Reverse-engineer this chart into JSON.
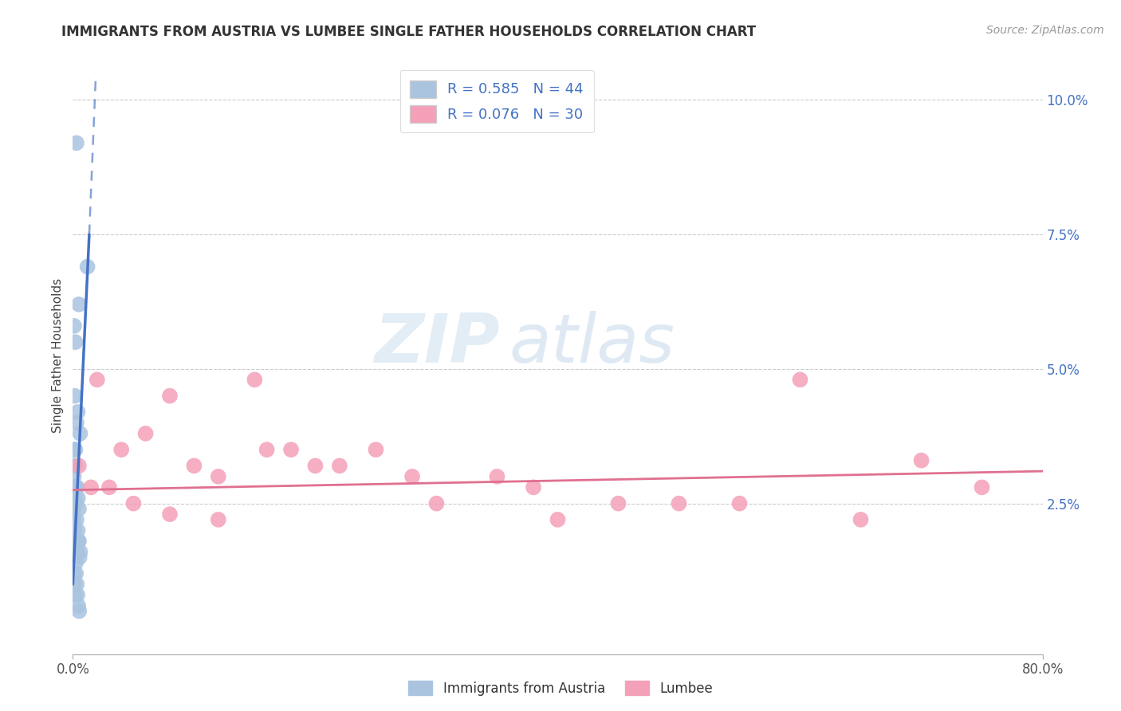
{
  "title": "IMMIGRANTS FROM AUSTRIA VS LUMBEE SINGLE FATHER HOUSEHOLDS CORRELATION CHART",
  "source": "Source: ZipAtlas.com",
  "ylabel": "Single Father Households",
  "xmin": 0.0,
  "xmax": 80.0,
  "ymin": -0.3,
  "ymax": 10.8,
  "yticks": [
    2.5,
    5.0,
    7.5,
    10.0
  ],
  "ytick_labels": [
    "2.5%",
    "5.0%",
    "7.5%",
    "10.0%"
  ],
  "xtick_left": "0.0%",
  "xtick_right": "80.0%",
  "blue_R": 0.585,
  "blue_N": 44,
  "pink_R": 0.076,
  "pink_N": 30,
  "blue_color": "#aac4e0",
  "blue_line_color": "#4472c4",
  "pink_color": "#f4a0b8",
  "pink_line_color": "#e07090",
  "grid_color": "#cccccc",
  "background_color": "#ffffff",
  "blue_scatter_x": [
    0.3,
    1.2,
    0.5,
    0.2,
    0.1,
    0.4,
    0.6,
    0.3,
    0.15,
    0.2,
    0.1,
    0.05,
    0.08,
    0.12,
    0.18,
    0.22,
    0.28,
    0.35,
    0.42,
    0.5,
    0.15,
    0.1,
    0.08,
    0.06,
    0.04,
    0.03,
    0.12,
    0.2,
    0.3,
    0.4,
    0.5,
    0.6,
    0.25,
    0.35,
    0.45,
    0.55,
    0.08,
    0.12,
    0.18,
    0.25,
    0.32,
    0.38,
    0.44,
    0.52
  ],
  "blue_scatter_y": [
    9.2,
    6.9,
    6.2,
    5.5,
    5.8,
    4.2,
    3.8,
    4.0,
    4.5,
    3.5,
    3.2,
    2.8,
    3.0,
    3.5,
    3.2,
    2.8,
    2.5,
    2.8,
    2.6,
    2.4,
    2.8,
    2.6,
    2.4,
    2.2,
    2.0,
    1.8,
    2.0,
    1.8,
    2.2,
    2.0,
    1.8,
    1.6,
    1.4,
    1.6,
    1.8,
    1.5,
    1.2,
    1.0,
    0.8,
    1.2,
    1.0,
    0.8,
    0.6,
    0.5
  ],
  "pink_scatter_x": [
    0.5,
    2.0,
    4.0,
    6.0,
    8.0,
    10.0,
    12.0,
    15.0,
    18.0,
    20.0,
    25.0,
    30.0,
    35.0,
    40.0,
    50.0,
    60.0,
    70.0,
    1.5,
    3.0,
    5.0,
    8.0,
    12.0,
    16.0,
    22.0,
    28.0,
    38.0,
    55.0,
    65.0,
    75.0,
    45.0
  ],
  "pink_scatter_y": [
    3.2,
    4.8,
    3.5,
    3.8,
    4.5,
    3.2,
    3.0,
    4.8,
    3.5,
    3.2,
    3.5,
    2.5,
    3.0,
    2.2,
    2.5,
    4.8,
    3.3,
    2.8,
    2.8,
    2.5,
    2.3,
    2.2,
    3.5,
    3.2,
    3.0,
    2.8,
    2.5,
    2.2,
    2.8,
    2.5
  ],
  "blue_line_x0": 0.0,
  "blue_line_y0": 1.0,
  "blue_line_x1": 1.35,
  "blue_line_y1": 7.5,
  "blue_dashed_x1": 1.9,
  "blue_dashed_y1": 10.5,
  "pink_line_x0": 0.0,
  "pink_line_y0": 2.75,
  "pink_line_x1": 80.0,
  "pink_line_y1": 3.1
}
